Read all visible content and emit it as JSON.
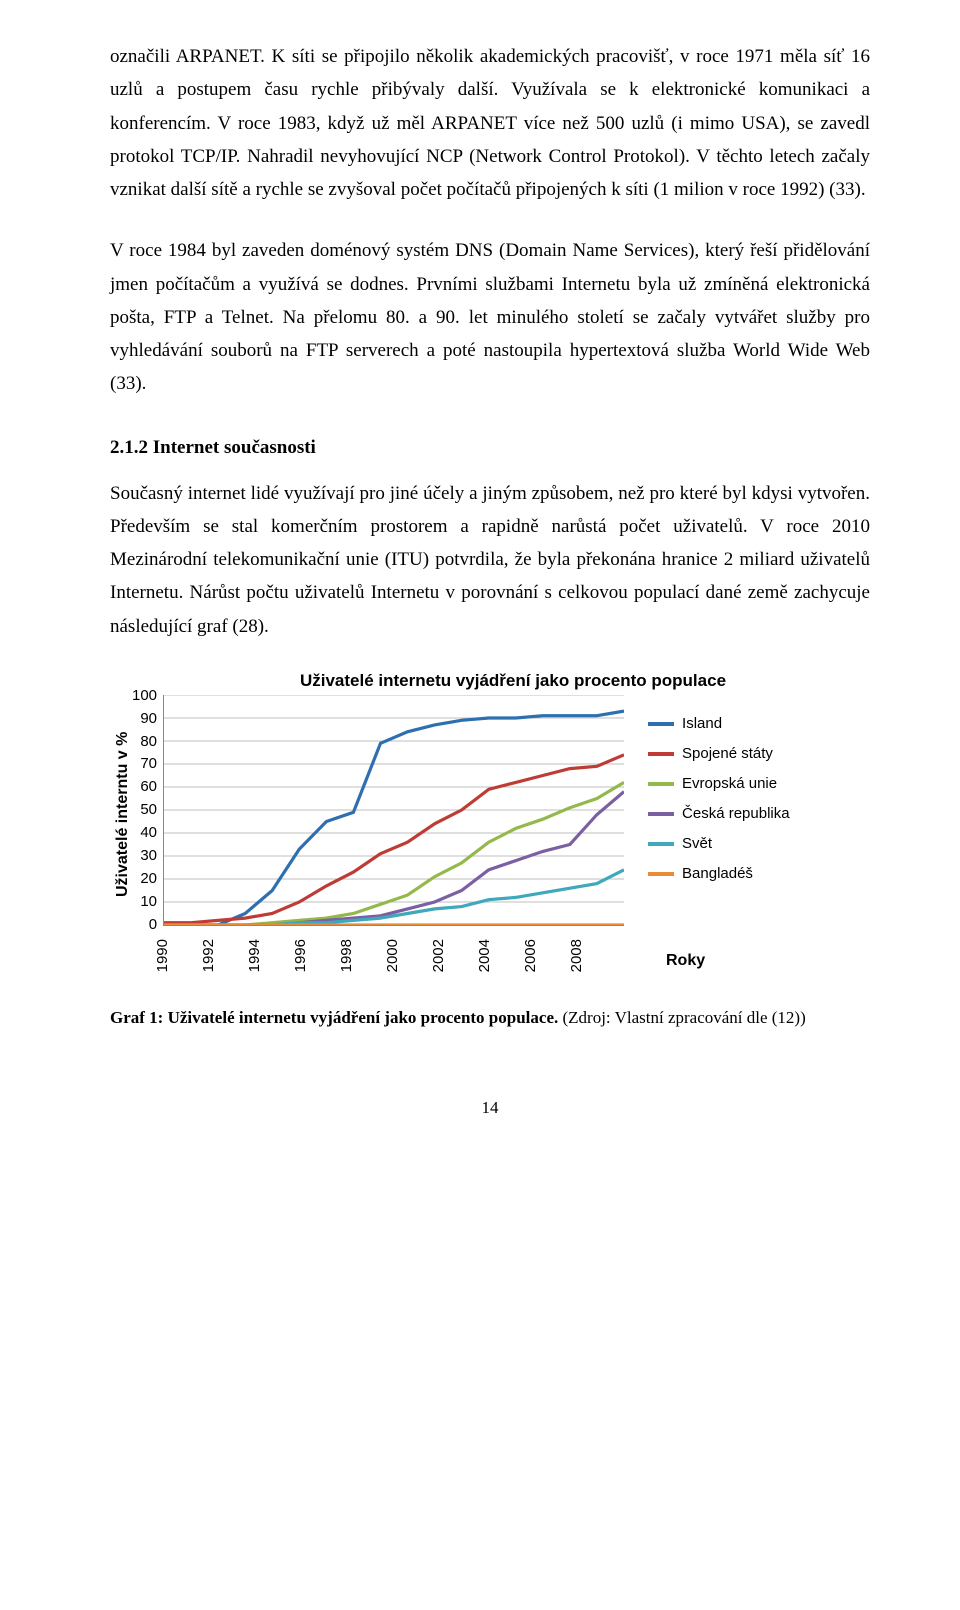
{
  "paragraphs": {
    "p1": "označili ARPANET. K síti se připojilo několik akademických pracovišť, v roce 1971 měla síť 16 uzlů a postupem času rychle přibývaly další. Využívala se k elektronické komunikaci a konferencím. V roce 1983, když už měl ARPANET více než 500 uzlů (i mimo USA), se zavedl protokol TCP/IP. Nahradil nevyhovující NCP (Network Control Protokol). V těchto letech začaly vznikat další sítě a rychle se zvyšoval počet počítačů připojených k síti (1 milion v roce 1992) (33).",
    "p2": "V roce 1984 byl zaveden doménový systém DNS (Domain Name Services), který řeší přidělování jmen počítačům a využívá se dodnes. Prvními službami Internetu byla už zmíněná elektronická pošta, FTP a Telnet. Na přelomu 80. a 90. let minulého století se začaly vytvářet služby pro vyhledávání souborů na FTP serverech a poté nastoupila hypertextová služba World Wide Web (33).",
    "p3": "Současný internet lidé využívají pro jiné účely a jiným způsobem, než pro které byl kdysi vytvořen. Především se stal komerčním prostorem a rapidně narůstá počet uživatelů. V roce 2010 Mezinárodní telekomunikační unie (ITU) potvrdila, že byla překonána hranice 2 miliard uživatelů Internetu. Nárůst počtu uživatelů Internetu v porovnání s celkovou populací dané země zachycuje následující graf (28)."
  },
  "section_heading": "2.1.2   Internet současnosti",
  "chart": {
    "title": "Uživatelé internetu vyjádření jako procento populace",
    "ylabel": "Uživatelé interntu v %",
    "xlabel": "Roky",
    "ylim": [
      0,
      100
    ],
    "ytick_step": 10,
    "yticks": [
      "100",
      "90",
      "80",
      "70",
      "60",
      "50",
      "40",
      "30",
      "20",
      "10",
      "0"
    ],
    "xticks": [
      "1990",
      "1992",
      "1994",
      "1996",
      "1998",
      "2000",
      "2002",
      "2004",
      "2006",
      "2008"
    ],
    "grid_color": "#bfbfbf",
    "axis_color": "#888888",
    "background_color": "#ffffff",
    "line_width": 3.2,
    "series": [
      {
        "name": "Island",
        "color": "#2e6fb0",
        "values": [
          0,
          0,
          0,
          5,
          15,
          33,
          45,
          49,
          79,
          84,
          87,
          89,
          90,
          90,
          91,
          91,
          91,
          93
        ]
      },
      {
        "name": "Spojené státy",
        "color": "#bf3b36",
        "values": [
          1,
          1,
          2,
          3,
          5,
          10,
          17,
          23,
          31,
          36,
          44,
          50,
          59,
          62,
          65,
          68,
          69,
          74
        ]
      },
      {
        "name": "Evropská unie",
        "color": "#94b94a",
        "values": [
          0,
          0,
          0,
          0,
          1,
          2,
          3,
          5,
          9,
          13,
          21,
          27,
          36,
          42,
          46,
          51,
          55,
          62
        ]
      },
      {
        "name": "Česká republika",
        "color": "#7a5fa3",
        "values": [
          0,
          0,
          0,
          0,
          0,
          1,
          2,
          3,
          4,
          7,
          10,
          15,
          24,
          28,
          32,
          35,
          48,
          58
        ]
      },
      {
        "name": "Svět",
        "color": "#3fa8ba",
        "values": [
          0,
          0,
          0,
          0,
          0,
          1,
          1,
          2,
          3,
          5,
          7,
          8,
          11,
          12,
          14,
          16,
          18,
          24
        ]
      },
      {
        "name": "Bangladéš",
        "color": "#e88c3a",
        "values": [
          0,
          0,
          0,
          0,
          0,
          0,
          0,
          0,
          0,
          0,
          0,
          0,
          0,
          0,
          0,
          0,
          0,
          0
        ]
      }
    ]
  },
  "caption": {
    "bold": "Graf 1: Uživatelé internetu vyjádření jako procento populace.",
    "rest": " (Zdroj: Vlastní zpracování dle (12))"
  },
  "pagenum": "14"
}
